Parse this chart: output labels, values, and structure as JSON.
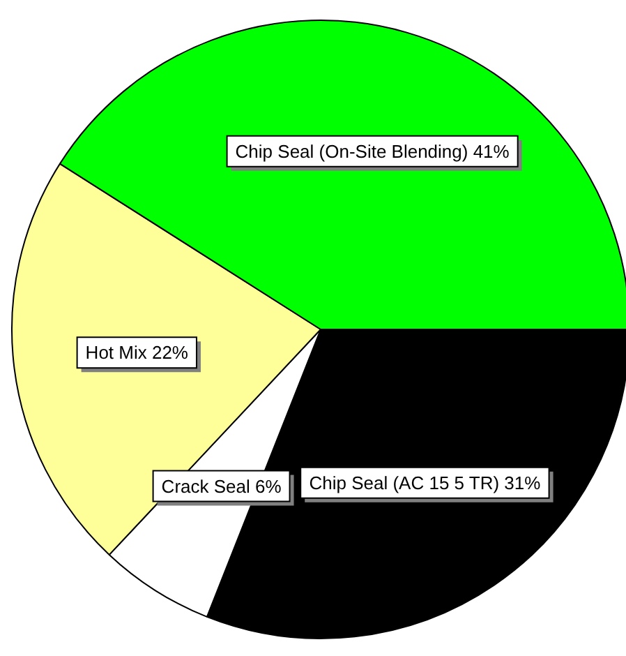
{
  "chart_data": {
    "type": "pie",
    "categories": [
      "Chip Seal (AC 15 5 TR)",
      "Crack Seal",
      "Hot Mix",
      "Chip Seal (On-Site Blending)"
    ],
    "values": [
      31,
      6,
      22,
      41
    ],
    "value_labels": [
      "31%",
      "6%",
      "22%",
      "41%"
    ],
    "colors": [
      "#000000",
      "#ffffff",
      "#ffff99",
      "#00ff00"
    ],
    "legend": false
  }
}
